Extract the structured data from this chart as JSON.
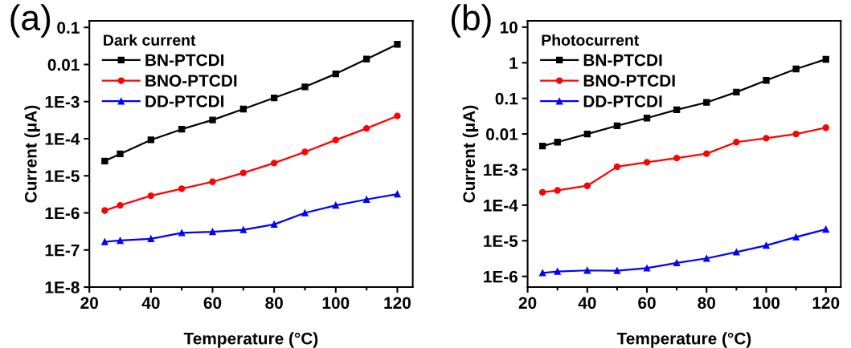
{
  "chart_data": [
    {
      "type": "line",
      "title": "(a)",
      "xlabel": "Temperature (°C)",
      "ylabel": "Current (μA)",
      "legend_title": "Dark current",
      "legend": "top left",
      "log": "y",
      "grid": false,
      "x": [
        25,
        30,
        40,
        50,
        60,
        70,
        80,
        90,
        100,
        110,
        120
      ],
      "xlim": [
        20,
        125
      ],
      "xticks": [
        20,
        40,
        60,
        80,
        100,
        120
      ],
      "ylim": [
        1e-08,
        0.15
      ],
      "yticks": [
        {
          "value": 1e-08,
          "label": "1E-8"
        },
        {
          "value": 1e-07,
          "label": "1E-7"
        },
        {
          "value": 1e-06,
          "label": "1E-6"
        },
        {
          "value": 1e-05,
          "label": "1E-5"
        },
        {
          "value": 0.0001,
          "label": "1E-4"
        },
        {
          "value": 0.001,
          "label": "1E-3"
        },
        0.01,
        0.1
      ],
      "series": [
        {
          "name": "BN-PTCDI",
          "color": "#000000",
          "marker": "square",
          "values": [
            2.5e-05,
            3.9e-05,
            9.3e-05,
            0.00018,
            0.00032,
            0.00063,
            0.00126,
            0.0025,
            0.0056,
            0.014,
            0.035
          ]
        },
        {
          "name": "BNO-PTCDI",
          "color": "#ff0000",
          "marker": "circle",
          "values": [
            1.16e-06,
            1.6e-06,
            2.9e-06,
            4.5e-06,
            6.9e-06,
            1.2e-05,
            2.2e-05,
            4.4e-05,
            9.2e-05,
            0.00019,
            0.00041
          ]
        },
        {
          "name": "DD-PTCDI",
          "color": "#0000ff",
          "marker": "triangle",
          "values": [
            1.66e-07,
            1.8e-07,
            2e-07,
            2.9e-07,
            3.1e-07,
            3.5e-07,
            4.9e-07,
            1e-06,
            1.6e-06,
            2.3e-06,
            3.2e-06
          ]
        }
      ]
    },
    {
      "type": "line",
      "title": "(b)",
      "xlabel": "Temperature (°C)",
      "ylabel": "Current (μA)",
      "legend_title": "Photocurrent",
      "legend": "top left",
      "log": "y",
      "grid": false,
      "x": [
        25,
        30,
        40,
        50,
        60,
        70,
        80,
        90,
        100,
        110,
        120
      ],
      "xlim": [
        20,
        125
      ],
      "xticks": [
        20,
        40,
        60,
        80,
        100,
        120
      ],
      "ylim": [
        5e-07,
        15
      ],
      "yticks": [
        {
          "value": 1e-06,
          "label": "1E-6"
        },
        {
          "value": 1e-05,
          "label": "1E-5"
        },
        {
          "value": 0.0001,
          "label": "1E-4"
        },
        {
          "value": 0.001,
          "label": "1E-3"
        },
        0.01,
        0.1,
        1,
        10
      ],
      "series": [
        {
          "name": "BN-PTCDI",
          "color": "#000000",
          "marker": "square",
          "values": [
            0.0046,
            0.0059,
            0.01,
            0.017,
            0.028,
            0.048,
            0.077,
            0.15,
            0.32,
            0.67,
            1.25
          ]
        },
        {
          "name": "BNO-PTCDI",
          "color": "#ff0000",
          "marker": "circle",
          "values": [
            0.00023,
            0.00026,
            0.00035,
            0.0012,
            0.0016,
            0.0021,
            0.0028,
            0.0059,
            0.0076,
            0.01,
            0.015
          ]
        },
        {
          "name": "DD-PTCDI",
          "color": "#0000ff",
          "marker": "triangle",
          "values": [
            1.25e-06,
            1.37e-06,
            1.47e-06,
            1.44e-06,
            1.7e-06,
            2.4e-06,
            3.2e-06,
            4.8e-06,
            7.4e-06,
            1.27e-05,
            2.1e-05
          ]
        }
      ]
    }
  ]
}
